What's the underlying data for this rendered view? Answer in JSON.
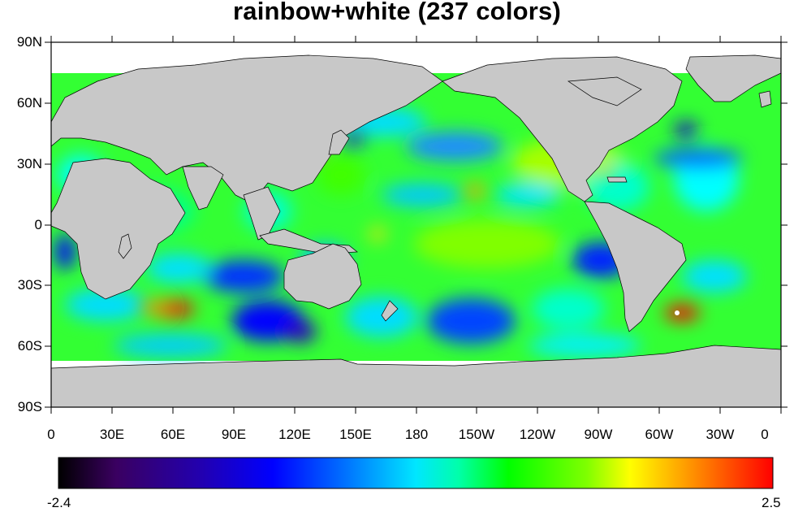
{
  "title": "rainbow+white (237 colors)",
  "map": {
    "projection": "cylindrical-equidistant",
    "land_color": "#c8c8c8",
    "missing_color": "#ffffff",
    "lat_ticks": [
      "90N",
      "60N",
      "30N",
      "0",
      "30S",
      "60S",
      "90S"
    ],
    "lon_ticks": [
      "0",
      "30E",
      "60E",
      "90E",
      "120E",
      "150E",
      "180",
      "150W",
      "120W",
      "90W",
      "60W",
      "30W",
      "0"
    ]
  },
  "colorbar": {
    "min_label": "-2.4",
    "max_label": "2.5",
    "stops": [
      "#000000",
      "#3a0060",
      "#2200b0",
      "#0000ff",
      "#0070ff",
      "#00e6ff",
      "#00ffaa",
      "#00ff00",
      "#80ff00",
      "#ffff00",
      "#ff9a00",
      "#ff0000"
    ]
  }
}
